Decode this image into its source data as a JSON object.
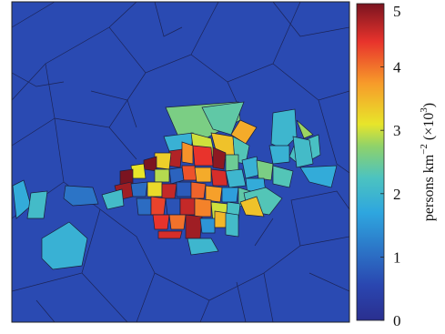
{
  "chart_data": {
    "type": "heatmap",
    "subtype": "voronoi-choropleth",
    "title": "",
    "colorbar": {
      "label_main": "persons km",
      "label_exp": "−2",
      "label_scale_pre": " (×10",
      "label_scale_exp": "3",
      "label_scale_post": ")",
      "min": 0,
      "max": 5,
      "ticks": [
        "0",
        "1",
        "2",
        "3",
        "4",
        "5"
      ],
      "colormap": "jet"
    },
    "background_value": 0.6,
    "cells": [
      {
        "poly": [
          [
            182,
            118
          ],
          [
            262,
            112
          ],
          [
            264,
            132
          ],
          [
            226,
            152
          ],
          [
            196,
            150
          ]
        ],
        "v": 2.6
      },
      {
        "poly": [
          [
            222,
            118
          ],
          [
            268,
            112
          ],
          [
            254,
            148
          ],
          [
            234,
            142
          ]
        ],
        "v": 2.4
      },
      {
        "poly": [
          [
            264,
            132
          ],
          [
            254,
            148
          ],
          [
            270,
            158
          ],
          [
            282,
            140
          ]
        ],
        "v": 3.6
      },
      {
        "poly": [
          [
            180,
            150
          ],
          [
            212,
            146
          ],
          [
            210,
            168
          ],
          [
            186,
            166
          ]
        ],
        "v": 1.9
      },
      {
        "poly": [
          [
            300,
            124
          ],
          [
            324,
            120
          ],
          [
            326,
            150
          ],
          [
            312,
            164
          ],
          [
            298,
            158
          ]
        ],
        "v": 2.0
      },
      {
        "poly": [
          [
            326,
            132
          ],
          [
            344,
            148
          ],
          [
            334,
            152
          ]
        ],
        "v": 2.8
      },
      {
        "poly": [
          [
            324,
            158
          ],
          [
            350,
            148
          ],
          [
            352,
            170
          ],
          [
            330,
            182
          ],
          [
            318,
            172
          ]
        ],
        "v": 2.2
      },
      {
        "poly": [
          [
            330,
            184
          ],
          [
            370,
            182
          ],
          [
            364,
            206
          ],
          [
            340,
            200
          ]
        ],
        "v": 1.8
      },
      {
        "poly": [
          [
            210,
            146
          ],
          [
            232,
            152
          ],
          [
            236,
            172
          ],
          [
            214,
            176
          ]
        ],
        "v": 3.0
      },
      {
        "poly": [
          [
            232,
            146
          ],
          [
            256,
            150
          ],
          [
            258,
            174
          ],
          [
            240,
            176
          ]
        ],
        "v": 3.4
      },
      {
        "poly": [
          [
            256,
            150
          ],
          [
            274,
            160
          ],
          [
            270,
            180
          ],
          [
            258,
            178
          ]
        ],
        "v": 2.3
      },
      {
        "poly": [
          [
            186,
            166
          ],
          [
            200,
            164
          ],
          [
            198,
            184
          ],
          [
            184,
            182
          ]
        ],
        "v": 4.7
      },
      {
        "poly": [
          [
            200,
            156
          ],
          [
            212,
            160
          ],
          [
            212,
            180
          ],
          [
            200,
            178
          ]
        ],
        "v": 3.8
      },
      {
        "poly": [
          [
            212,
            160
          ],
          [
            232,
            162
          ],
          [
            234,
            182
          ],
          [
            214,
            182
          ]
        ],
        "v": 4.4
      },
      {
        "poly": [
          [
            234,
            162
          ],
          [
            248,
            168
          ],
          [
            246,
            186
          ],
          [
            234,
            184
          ]
        ],
        "v": 4.9
      },
      {
        "poly": [
          [
            248,
            170
          ],
          [
            262,
            170
          ],
          [
            262,
            188
          ],
          [
            248,
            188
          ]
        ],
        "v": 2.5
      },
      {
        "poly": [
          [
            170,
            168
          ],
          [
            188,
            168
          ],
          [
            186,
            186
          ],
          [
            170,
            184
          ]
        ],
        "v": 3.3
      },
      {
        "poly": [
          [
            158,
            176
          ],
          [
            172,
            172
          ],
          [
            172,
            188
          ],
          [
            158,
            186
          ]
        ],
        "v": 5.0
      },
      {
        "poly": [
          [
            144,
            182
          ],
          [
            158,
            180
          ],
          [
            160,
            196
          ],
          [
            146,
            196
          ]
        ],
        "v": 3.1
      },
      {
        "poly": [
          [
            132,
            188
          ],
          [
            146,
            186
          ],
          [
            146,
            202
          ],
          [
            132,
            204
          ]
        ],
        "v": 5.0
      },
      {
        "poly": [
          [
            170,
            186
          ],
          [
            186,
            186
          ],
          [
            186,
            200
          ],
          [
            170,
            200
          ]
        ],
        "v": 2.9
      },
      {
        "poly": [
          [
            186,
            186
          ],
          [
            200,
            184
          ],
          [
            202,
            198
          ],
          [
            188,
            202
          ]
        ],
        "v": 0.9
      },
      {
        "poly": [
          [
            200,
            182
          ],
          [
            214,
            182
          ],
          [
            216,
            198
          ],
          [
            202,
            198
          ]
        ],
        "v": 4.2
      },
      {
        "poly": [
          [
            214,
            184
          ],
          [
            232,
            184
          ],
          [
            232,
            200
          ],
          [
            216,
            200
          ]
        ],
        "v": 3.6
      },
      {
        "poly": [
          [
            232,
            186
          ],
          [
            248,
            188
          ],
          [
            250,
            204
          ],
          [
            234,
            204
          ]
        ],
        "v": 4.5
      },
      {
        "poly": [
          [
            248,
            188
          ],
          [
            266,
            186
          ],
          [
            270,
            204
          ],
          [
            252,
            206
          ]
        ],
        "v": 2.0
      },
      {
        "poly": [
          [
            266,
            176
          ],
          [
            282,
            172
          ],
          [
            286,
            192
          ],
          [
            270,
            196
          ]
        ],
        "v": 1.9
      },
      {
        "poly": [
          [
            282,
            176
          ],
          [
            300,
            180
          ],
          [
            298,
            198
          ],
          [
            284,
            196
          ]
        ],
        "v": 2.6
      },
      {
        "poly": [
          [
            300,
            182
          ],
          [
            322,
            188
          ],
          [
            318,
            206
          ],
          [
            300,
            202
          ]
        ],
        "v": 2.3
      },
      {
        "poly": [
          [
            270,
            196
          ],
          [
            290,
            196
          ],
          [
            292,
            212
          ],
          [
            272,
            214
          ]
        ],
        "v": 1.8
      },
      {
        "poly": [
          [
            126,
            204
          ],
          [
            144,
            200
          ],
          [
            146,
            216
          ],
          [
            130,
            220
          ]
        ],
        "v": 4.8
      },
      {
        "poly": [
          [
            144,
            202
          ],
          [
            162,
            200
          ],
          [
            160,
            216
          ],
          [
            146,
            216
          ]
        ],
        "v": 1.0
      },
      {
        "poly": [
          [
            162,
            200
          ],
          [
            178,
            200
          ],
          [
            178,
            216
          ],
          [
            162,
            216
          ]
        ],
        "v": 3.2
      },
      {
        "poly": [
          [
            178,
            202
          ],
          [
            194,
            202
          ],
          [
            192,
            218
          ],
          [
            178,
            218
          ]
        ],
        "v": 4.6
      },
      {
        "poly": [
          [
            194,
            200
          ],
          [
            210,
            200
          ],
          [
            210,
            216
          ],
          [
            194,
            216
          ]
        ],
        "v": 0.8
      },
      {
        "poly": [
          [
            210,
            200
          ],
          [
            226,
            202
          ],
          [
            224,
            218
          ],
          [
            210,
            218
          ]
        ],
        "v": 4.1
      },
      {
        "poly": [
          [
            226,
            204
          ],
          [
            244,
            206
          ],
          [
            242,
            222
          ],
          [
            226,
            220
          ]
        ],
        "v": 3.7
      },
      {
        "poly": [
          [
            244,
            206
          ],
          [
            262,
            206
          ],
          [
            260,
            222
          ],
          [
            244,
            222
          ]
        ],
        "v": 1.6
      },
      {
        "poly": [
          [
            262,
            206
          ],
          [
            282,
            212
          ],
          [
            280,
            230
          ],
          [
            262,
            226
          ]
        ],
        "v": 2.4
      },
      {
        "poly": [
          [
            268,
            212
          ],
          [
            292,
            206
          ],
          [
            310,
            218
          ],
          [
            296,
            236
          ],
          [
            272,
            232
          ]
        ],
        "v": 2.3
      },
      {
        "poly": [
          [
            264,
            222
          ],
          [
            282,
            216
          ],
          [
            290,
            238
          ],
          [
            270,
            236
          ]
        ],
        "v": 3.4
      },
      {
        "poly": [
          [
            150,
            218
          ],
          [
            166,
            218
          ],
          [
            166,
            236
          ],
          [
            152,
            236
          ]
        ],
        "v": 1.0
      },
      {
        "poly": [
          [
            166,
            216
          ],
          [
            182,
            218
          ],
          [
            180,
            236
          ],
          [
            166,
            236
          ]
        ],
        "v": 4.3
      },
      {
        "poly": [
          [
            182,
            218
          ],
          [
            198,
            218
          ],
          [
            198,
            236
          ],
          [
            184,
            236
          ]
        ],
        "v": 0.7
      },
      {
        "poly": [
          [
            198,
            218
          ],
          [
            214,
            218
          ],
          [
            214,
            236
          ],
          [
            198,
            236
          ]
        ],
        "v": 4.6
      },
      {
        "poly": [
          [
            214,
            218
          ],
          [
            232,
            220
          ],
          [
            232,
            238
          ],
          [
            214,
            238
          ]
        ],
        "v": 3.9
      },
      {
        "poly": [
          [
            232,
            222
          ],
          [
            250,
            224
          ],
          [
            248,
            246
          ],
          [
            234,
            244
          ]
        ],
        "v": 3.0
      },
      {
        "poly": [
          [
            250,
            222
          ],
          [
            264,
            224
          ],
          [
            262,
            242
          ],
          [
            248,
            244
          ]
        ],
        "v": 2.2
      },
      {
        "poly": [
          [
            112,
            214
          ],
          [
            134,
            208
          ],
          [
            136,
            226
          ],
          [
            118,
            230
          ]
        ],
        "v": 2.1
      },
      {
        "poly": [
          [
            168,
            236
          ],
          [
            186,
            236
          ],
          [
            184,
            252
          ],
          [
            170,
            252
          ]
        ],
        "v": 4.4
      },
      {
        "poly": [
          [
            186,
            236
          ],
          [
            204,
            236
          ],
          [
            202,
            252
          ],
          [
            188,
            252
          ]
        ],
        "v": 4.0
      },
      {
        "poly": [
          [
            204,
            236
          ],
          [
            222,
            238
          ],
          [
            220,
            262
          ],
          [
            204,
            262
          ]
        ],
        "v": 4.8
      },
      {
        "poly": [
          [
            220,
            240
          ],
          [
            236,
            240
          ],
          [
            236,
            256
          ],
          [
            222,
            256
          ]
        ],
        "v": 1.5
      },
      {
        "poly": [
          [
            236,
            232
          ],
          [
            250,
            234
          ],
          [
            248,
            250
          ],
          [
            236,
            250
          ]
        ],
        "v": 3.5
      },
      {
        "poly": [
          [
            248,
            234
          ],
          [
            262,
            236
          ],
          [
            262,
            260
          ],
          [
            248,
            258
          ]
        ],
        "v": 2.1
      },
      {
        "poly": [
          [
            174,
            254
          ],
          [
            200,
            254
          ],
          [
            198,
            262
          ],
          [
            174,
            262
          ]
        ],
        "v": 4.5
      },
      {
        "poly": [
          [
            206,
            262
          ],
          [
            232,
            262
          ],
          [
            240,
            276
          ],
          [
            210,
            280
          ]
        ],
        "v": 2.0
      },
      {
        "poly": [
          [
            14,
            204
          ],
          [
            26,
            198
          ],
          [
            34,
            226
          ],
          [
            18,
            240
          ]
        ],
        "v": 1.8
      },
      {
        "poly": [
          [
            34,
            212
          ],
          [
            52,
            210
          ],
          [
            48,
            240
          ],
          [
            30,
            240
          ]
        ],
        "v": 2.1
      },
      {
        "poly": [
          [
            72,
            204
          ],
          [
            102,
            206
          ],
          [
            108,
            224
          ],
          [
            80,
            226
          ],
          [
            70,
            218
          ]
        ],
        "v": 1.1
      },
      {
        "poly": [
          [
            46,
            262
          ],
          [
            76,
            244
          ],
          [
            96,
            262
          ],
          [
            90,
            292
          ],
          [
            58,
            296
          ],
          [
            46,
            284
          ]
        ],
        "v": 1.9
      },
      {
        "poly": [
          [
            322,
            150
          ],
          [
            340,
            154
          ],
          [
            344,
            180
          ],
          [
            326,
            184
          ]
        ],
        "v": 2.1
      },
      {
        "poly": [
          [
            296,
            160
          ],
          [
            318,
            160
          ],
          [
            318,
            178
          ],
          [
            300,
            180
          ]
        ],
        "v": 1.9
      }
    ]
  }
}
